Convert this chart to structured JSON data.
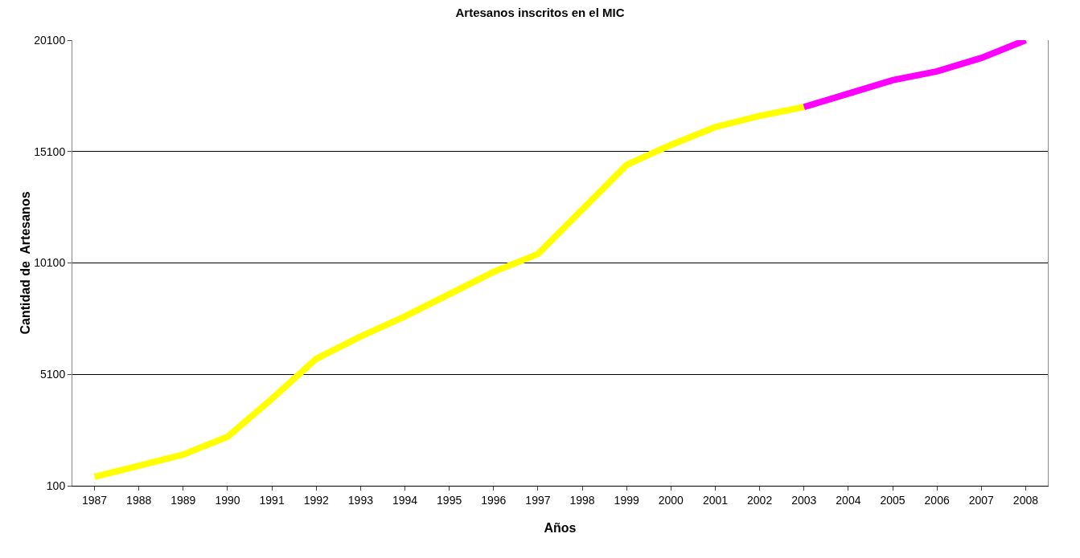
{
  "chart_data": {
    "type": "line",
    "title": "Artesanos inscritos en el MIC",
    "xlabel": "Años",
    "ylabel": "Cantidad de  Artesanos",
    "categories": [
      "1987",
      "1988",
      "1989",
      "1990",
      "1991",
      "1992",
      "1993",
      "1994",
      "1995",
      "1996",
      "1997",
      "1998",
      "1999",
      "2000",
      "2001",
      "2002",
      "2003",
      "2004",
      "2005",
      "2006",
      "2007",
      "2008"
    ],
    "series": [
      {
        "color": "#ffff00",
        "values": [
          500,
          1000,
          1500,
          2300,
          4000,
          5800,
          6800,
          7700,
          8700,
          9700,
          10500,
          12500,
          14500,
          15400,
          16200,
          16700,
          17100,
          null,
          null,
          null,
          null,
          null
        ]
      },
      {
        "color": "#ff00ff",
        "values": [
          null,
          null,
          null,
          null,
          null,
          null,
          null,
          null,
          null,
          null,
          null,
          null,
          null,
          null,
          null,
          null,
          17100,
          17700,
          18300,
          18700,
          19300,
          20100
        ]
      }
    ],
    "ylim": [
      100,
      20100
    ],
    "yticks": [
      100,
      5100,
      10100,
      15100,
      20100
    ],
    "grid": "y",
    "marker": "none",
    "line_style": "solid"
  }
}
